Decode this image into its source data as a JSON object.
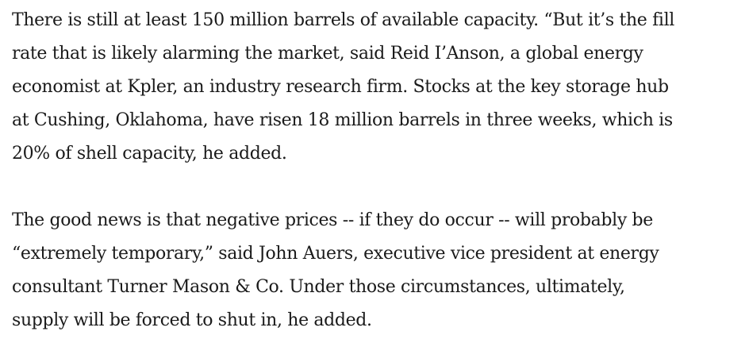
{
  "article": {
    "paragraphs": [
      {
        "lines": [
          "There is still at least 150 million barrels of available capacity. “But it’s the fill",
          "rate that is likely alarming the market, said Reid I’Anson, a global energy",
          "economist at Kpler, an industry research firm. Stocks at the key storage hub",
          "at Cushing, Oklahoma, have risen 18 million barrels in three weeks, which is",
          "20% of shell capacity, he added."
        ]
      },
      {
        "lines": [
          "The good news is that negative prices -- if they do occur -- will probably be",
          "“extremely temporary,” said John Auers, executive vice president at energy",
          "consultant Turner Mason & Co. Under those circumstances, ultimately,",
          "supply will be forced to shut in, he added."
        ]
      }
    ]
  }
}
